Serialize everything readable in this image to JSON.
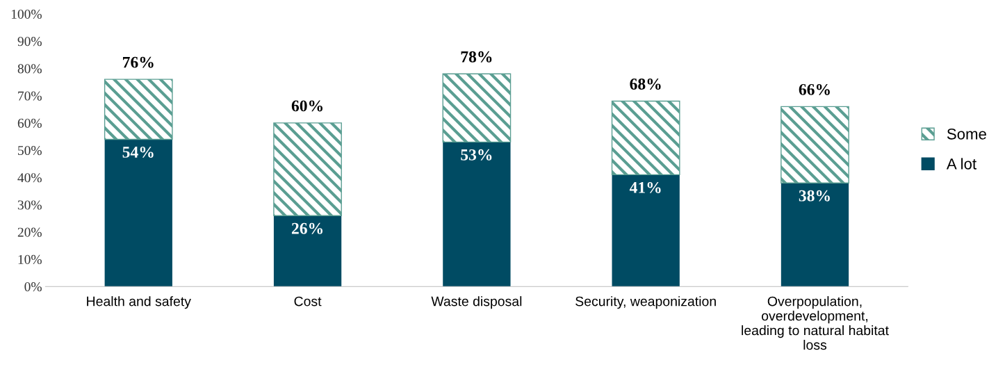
{
  "chart_data": {
    "type": "bar",
    "stacked": true,
    "categories": [
      "Health and safety",
      "Cost",
      "Waste disposal",
      "Security, weaponization",
      "Overpopulation,\noverdevelopment,\nleading to natural habitat\nloss"
    ],
    "series": [
      {
        "name": "A lot",
        "color": "#004b63",
        "values": [
          54,
          26,
          53,
          41,
          38
        ],
        "value_labels": [
          "54%",
          "26%",
          "53%",
          "41%",
          "38%"
        ]
      },
      {
        "name": "Some",
        "color": "#5a9e92",
        "values": [
          22,
          34,
          25,
          27,
          28
        ]
      }
    ],
    "totals": [
      "76%",
      "60%",
      "78%",
      "68%",
      "66%"
    ],
    "ylim": [
      0,
      100
    ],
    "yticks": [
      {
        "value": 0,
        "label": "0%"
      },
      {
        "value": 10,
        "label": "10%"
      },
      {
        "value": 20,
        "label": "20%"
      },
      {
        "value": 30,
        "label": "30%"
      },
      {
        "value": 40,
        "label": "40%"
      },
      {
        "value": 50,
        "label": "50%"
      },
      {
        "value": 60,
        "label": "60%"
      },
      {
        "value": 70,
        "label": "70%"
      },
      {
        "value": 80,
        "label": "80%"
      },
      {
        "value": 90,
        "label": "90%"
      },
      {
        "value": 100,
        "label": "100%"
      }
    ],
    "grid": false,
    "legend": "right"
  }
}
